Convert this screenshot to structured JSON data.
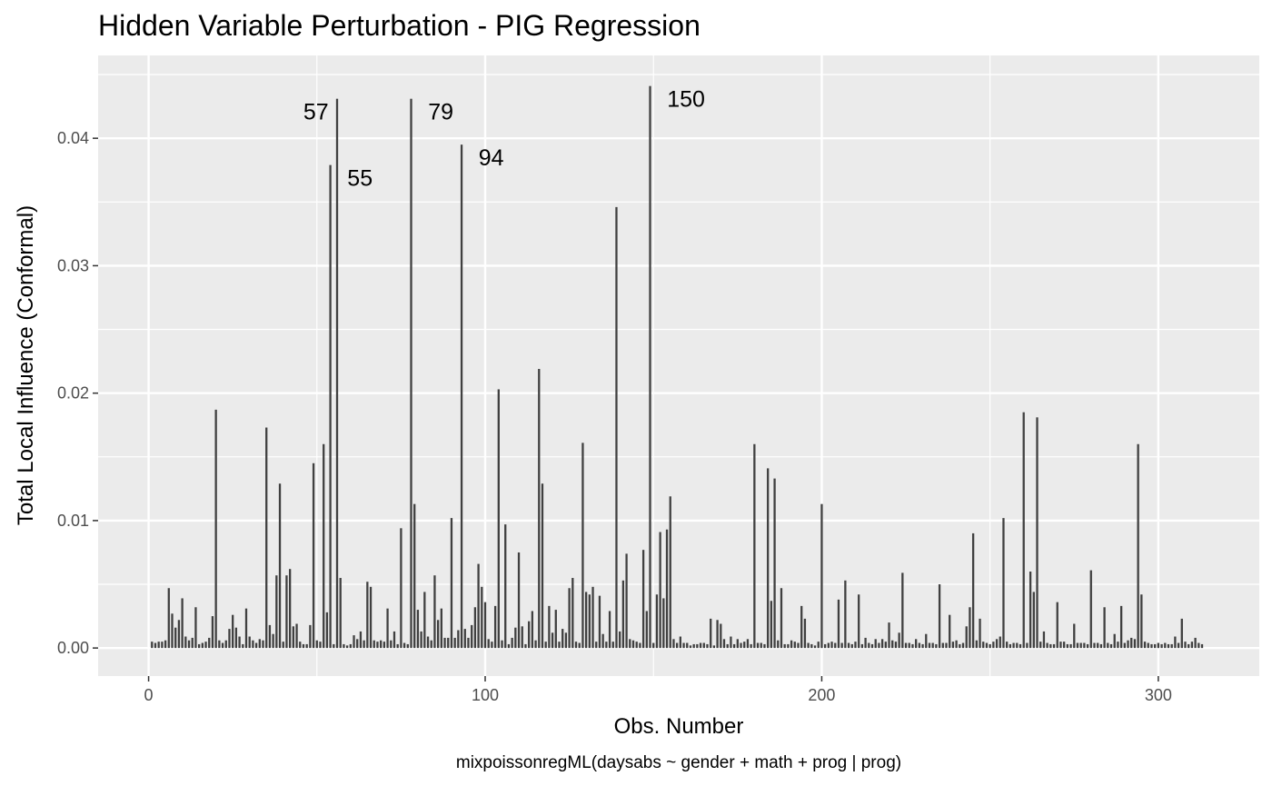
{
  "chart_data": {
    "type": "bar",
    "title": "Hidden Variable Perturbation - PIG Regression",
    "xlabel": "Obs. Number",
    "ylabel": "Total Local Influence (Conformal)",
    "caption": "mixpoissonregML(daysabs ~ gender + math + prog | prog)",
    "xlim": [
      -15,
      330
    ],
    "ylim": [
      -0.0022,
      0.0465
    ],
    "x_ticks": [
      0,
      100,
      200,
      300
    ],
    "x_tick_labels": [
      "0",
      "100",
      "200",
      "300"
    ],
    "y_ticks": [
      0.0,
      0.01,
      0.02,
      0.03,
      0.04
    ],
    "y_tick_labels": [
      "0.00",
      "0.01",
      "0.02",
      "0.03",
      "0.04"
    ],
    "grid": true,
    "legend": "none",
    "colors": {
      "panel": "#ebebeb",
      "grid": "#ffffff",
      "bar": "#404040"
    },
    "values": [
      0.0005,
      0.0004,
      0.0005,
      0.0005,
      0.0006,
      0.0047,
      0.0027,
      0.0016,
      0.0022,
      0.0039,
      0.0009,
      0.0006,
      0.0008,
      0.0032,
      0.0003,
      0.0004,
      0.0005,
      0.0008,
      0.0025,
      0.0187,
      0.0006,
      0.0004,
      0.0006,
      0.0015,
      0.0026,
      0.0016,
      0.0009,
      0.0003,
      0.0031,
      0.0009,
      0.0006,
      0.0004,
      0.0007,
      0.0006,
      0.0173,
      0.0018,
      0.0011,
      0.0057,
      0.0129,
      0.0005,
      0.0057,
      0.0062,
      0.0017,
      0.0019,
      0.0005,
      0.0003,
      0.0003,
      0.0018,
      0.0145,
      0.0006,
      0.0005,
      0.016,
      0.0028,
      0.0379,
      0.0003,
      0.0431,
      0.0055,
      0.0003,
      0.0002,
      0.0003,
      0.001,
      0.0007,
      0.0013,
      0.0006,
      0.0052,
      0.0048,
      0.0006,
      0.0005,
      0.0006,
      0.0005,
      0.0031,
      0.0006,
      0.0013,
      0.0003,
      0.0094,
      0.0004,
      0.0003,
      0.0431,
      0.0113,
      0.003,
      0.0013,
      0.0044,
      0.0009,
      0.0006,
      0.0057,
      0.0022,
      0.0031,
      0.0008,
      0.0008,
      0.0102,
      0.0008,
      0.0014,
      0.0395,
      0.0015,
      0.0008,
      0.0018,
      0.0032,
      0.0066,
      0.0048,
      0.0036,
      0.0007,
      0.0005,
      0.0033,
      0.0203,
      0.0006,
      0.0097,
      0.0003,
      0.0008,
      0.0016,
      0.0075,
      0.0017,
      0.0003,
      0.0021,
      0.0029,
      0.0006,
      0.0219,
      0.0129,
      0.0005,
      0.0033,
      0.0012,
      0.003,
      0.0005,
      0.0015,
      0.0012,
      0.0047,
      0.0055,
      0.0005,
      0.0004,
      0.0161,
      0.0044,
      0.0042,
      0.0048,
      0.0005,
      0.0041,
      0.0011,
      0.0005,
      0.0029,
      0.0005,
      0.0346,
      0.0013,
      0.0053,
      0.0074,
      0.0007,
      0.0006,
      0.0005,
      0.0004,
      0.0077,
      0.0029,
      0.0441,
      0.0004,
      0.0042,
      0.0091,
      0.0039,
      0.0093,
      0.0119,
      0.0007,
      0.0004,
      0.0009,
      0.0004,
      0.0004,
      0.0002,
      0.0003,
      0.0003,
      0.0004,
      0.0004,
      0.0003,
      0.0023,
      0.0002,
      0.0022,
      0.0019,
      0.0007,
      0.0003,
      0.0009,
      0.0003,
      0.0007,
      0.0004,
      0.0005,
      0.0007,
      0.0003,
      0.016,
      0.0004,
      0.0004,
      0.0003,
      0.0141,
      0.0037,
      0.0133,
      0.0006,
      0.0047,
      0.0003,
      0.0003,
      0.0006,
      0.0005,
      0.0004,
      0.0033,
      0.0023,
      0.0004,
      0.0003,
      0.0002,
      0.0005,
      0.0113,
      0.0003,
      0.0004,
      0.0005,
      0.0004,
      0.0038,
      0.0004,
      0.0053,
      0.0004,
      0.0003,
      0.0005,
      0.0042,
      0.0003,
      0.0008,
      0.0004,
      0.0003,
      0.0007,
      0.0004,
      0.0007,
      0.0005,
      0.002,
      0.0006,
      0.0005,
      0.0012,
      0.0059,
      0.0004,
      0.0004,
      0.0003,
      0.0007,
      0.0004,
      0.0003,
      0.0011,
      0.0004,
      0.0004,
      0.0003,
      0.005,
      0.0004,
      0.0004,
      0.0026,
      0.0005,
      0.0006,
      0.0003,
      0.0004,
      0.0017,
      0.0032,
      0.009,
      0.0006,
      0.0023,
      0.0005,
      0.0004,
      0.0003,
      0.0005,
      0.0007,
      0.0009,
      0.0102,
      0.0005,
      0.0003,
      0.0004,
      0.0004,
      0.0003,
      0.0185,
      0.0004,
      0.006,
      0.0044,
      0.0181,
      0.0005,
      0.0013,
      0.0004,
      0.0003,
      0.0003,
      0.0036,
      0.0005,
      0.0005,
      0.0003,
      0.0003,
      0.0019,
      0.0004,
      0.0004,
      0.0004,
      0.0003,
      0.0061,
      0.0004,
      0.0004,
      0.0003,
      0.0032,
      0.0004,
      0.0003,
      0.0011,
      0.0005,
      0.0033,
      0.0004,
      0.0006,
      0.0008,
      0.0007,
      0.016,
      0.0042,
      0.0005,
      0.0004,
      0.0003,
      0.0003,
      0.0004,
      0.0003,
      0.0004,
      0.0003,
      0.0003,
      0.0009,
      0.0004,
      0.0023,
      0.0005,
      0.0003,
      0.0005,
      0.0008,
      0.0004,
      0.0003
    ],
    "annotations": [
      {
        "obs": 57,
        "label": "57",
        "value": 0.0431,
        "side": "left"
      },
      {
        "obs": 55,
        "label": "55",
        "value": 0.0379,
        "side": "right"
      },
      {
        "obs": 79,
        "label": "79",
        "value": 0.0431,
        "side": "right"
      },
      {
        "obs": 94,
        "label": "94",
        "value": 0.0395,
        "side": "right"
      },
      {
        "obs": 150,
        "label": "150",
        "value": 0.0441,
        "side": "right"
      }
    ]
  }
}
